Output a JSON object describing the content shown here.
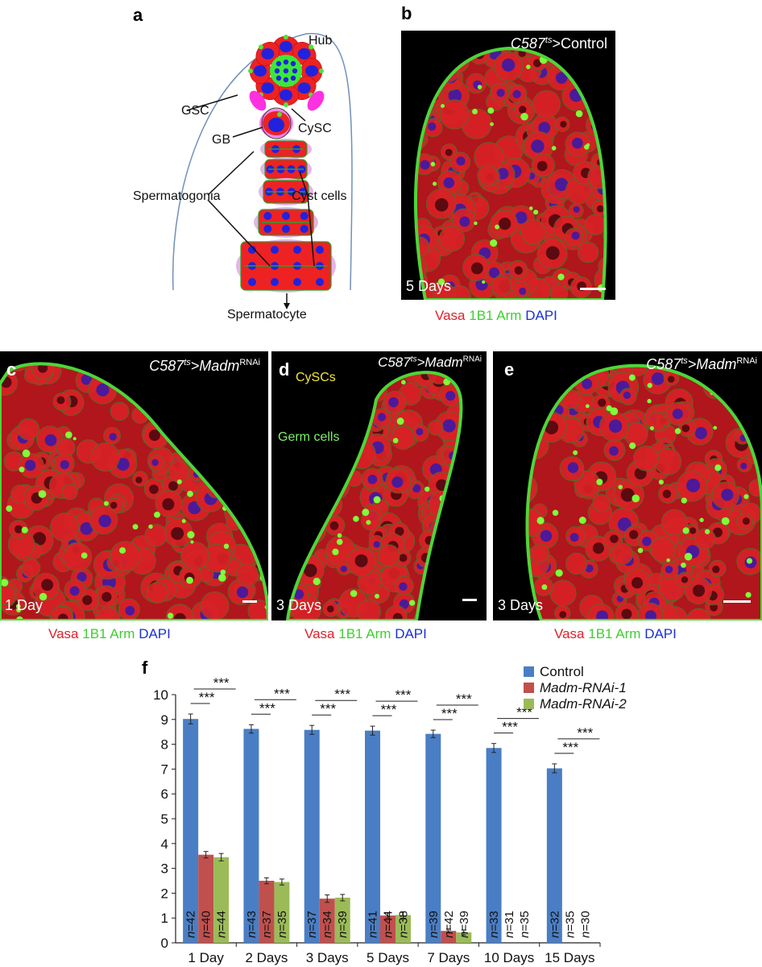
{
  "panels": {
    "a": {
      "letter": "a",
      "labels": {
        "hub": "Hub",
        "gsc": "GSC",
        "cysc": "CySC",
        "gb": "GB",
        "spermatogonia": "Spermatogonia",
        "cyst_cells": "Cyst cells",
        "spermatocyte": "Spermatocyte"
      }
    },
    "b": {
      "letter": "b",
      "genotype_prefix": "C587",
      "genotype_sup": "ts",
      "genotype_suffix": ">Control",
      "time": "5 Days"
    },
    "c": {
      "letter": "c",
      "genotype_prefix": "C587",
      "genotype_sup": "ts",
      "genotype_gene": ">Madm",
      "genotype_rnai": "RNAi",
      "time": "1 Day"
    },
    "d": {
      "letter": "d",
      "genotype_prefix": "C587",
      "genotype_sup": "ts",
      "genotype_gene": ">Madm",
      "genotype_rnai": "RNAi",
      "time": "3 Days",
      "cyscs_label": "CySCs",
      "germ_label": "Germ cells"
    },
    "e": {
      "letter": "e",
      "genotype_prefix": "C587",
      "genotype_sup": "ts",
      "genotype_gene": ">Madm",
      "genotype_rnai": "RNAi",
      "time": "3 Days"
    },
    "f": {
      "letter": "f"
    }
  },
  "stain_caption": {
    "vasa": "Vasa",
    "b1": "1B1",
    "arm": "Arm",
    "dapi": "DAPI"
  },
  "colors": {
    "control": "#4a7ec4",
    "rnai1": "#c0504d",
    "rnai2": "#9bbb59"
  },
  "chart_data": {
    "type": "bar",
    "categories": [
      "1 Day",
      "2 Days",
      "3 Days",
      "5 Days",
      "7 Days",
      "10 Days",
      "15 Days"
    ],
    "ylim": [
      0,
      10
    ],
    "yticks": [
      0,
      1,
      2,
      3,
      4,
      5,
      6,
      7,
      8,
      9,
      10
    ],
    "series": [
      {
        "name": "Control",
        "values": [
          9.02,
          8.62,
          8.58,
          8.55,
          8.42,
          7.85,
          7.03
        ],
        "errors": [
          0.2,
          0.17,
          0.18,
          0.18,
          0.15,
          0.18,
          0.18
        ],
        "n": [
          "n=42",
          "n=43",
          "n=37",
          "n=41",
          "n=39",
          "n=33",
          "n=32"
        ]
      },
      {
        "name": "Madm-RNAi-1",
        "values": [
          3.55,
          2.5,
          1.78,
          1.1,
          0.48,
          0,
          0
        ],
        "errors": [
          0.13,
          0.12,
          0.15,
          0.1,
          0.08,
          0,
          0
        ],
        "n": [
          "n=40",
          "n=37",
          "n=34",
          "n=44",
          "n=42",
          "n=31",
          "n=35"
        ]
      },
      {
        "name": "Madm-RNAi-2",
        "values": [
          3.45,
          2.45,
          1.82,
          1.12,
          0.42,
          0,
          0
        ],
        "errors": [
          0.15,
          0.12,
          0.13,
          0.13,
          0.1,
          0,
          0
        ],
        "n": [
          "n=44",
          "n=35",
          "n=39",
          "n=38",
          "n=39",
          "n=35",
          "n=30"
        ]
      }
    ],
    "significance": "***",
    "legend_position": "top-right"
  }
}
